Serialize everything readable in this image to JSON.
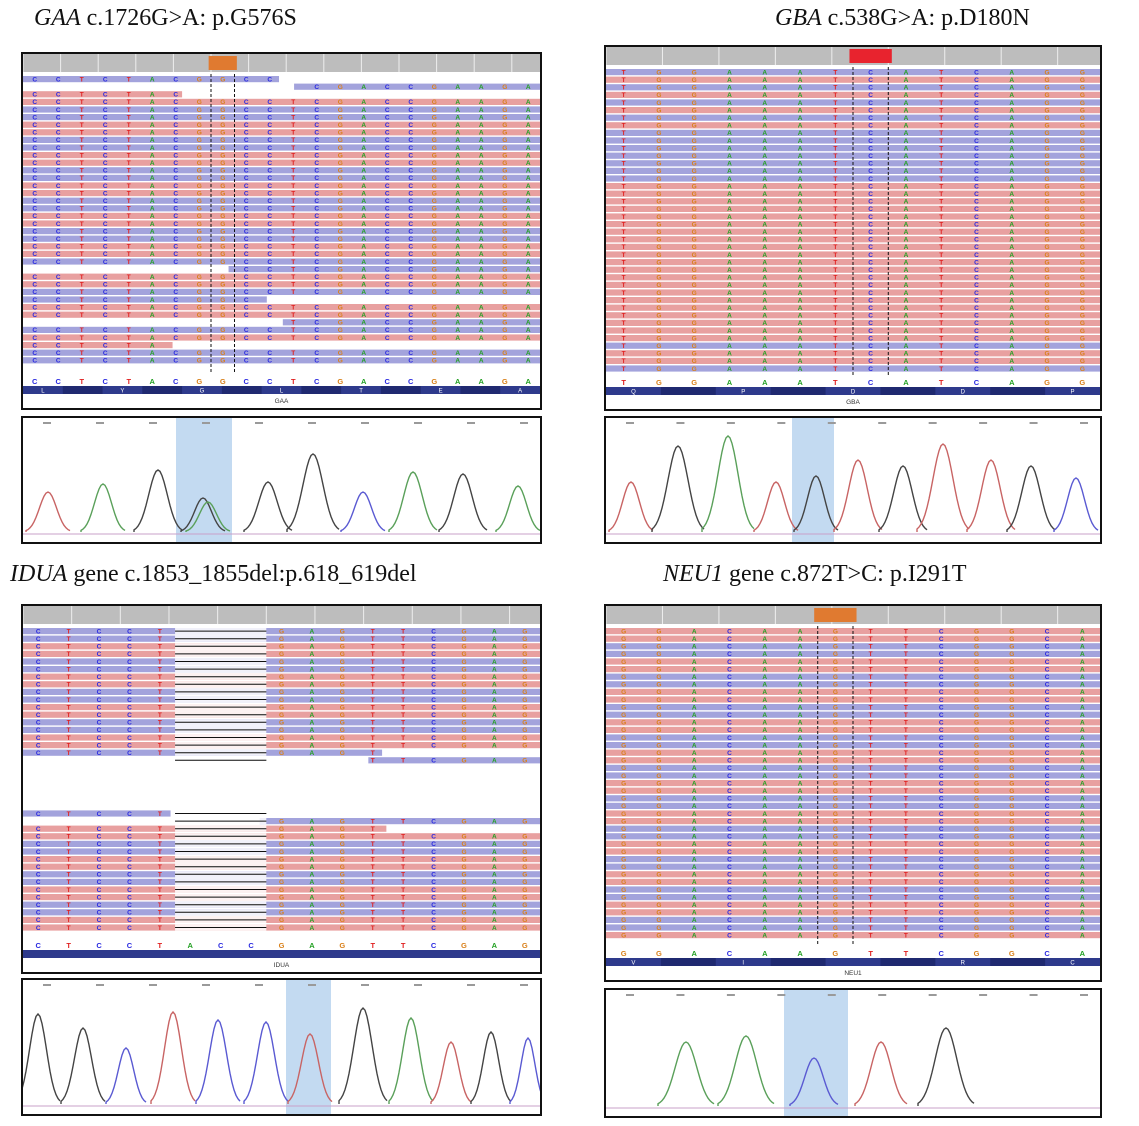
{
  "figure": {
    "panels": [
      {
        "id": "gaa",
        "gene": "GAA",
        "title_rest": " c.1726G>A: p.G576S",
        "bases": [
          "C",
          "C",
          "T",
          "C",
          "T",
          "A",
          "C",
          "G",
          "G",
          "C",
          "C",
          "T",
          "C",
          "G",
          "A",
          "C",
          "C",
          "G",
          "A",
          "A",
          "G",
          "A"
        ],
        "aa": [
          "L",
          "",
          "Y",
          "",
          "G",
          "",
          "L",
          "",
          "T",
          "",
          "E",
          "",
          "A"
        ],
        "gene_label": "GAA",
        "variant": "alt-highlight",
        "colors": {
          "red": "#e8a0a0",
          "blue": "#a3a3dc",
          "grey": "#cfcfcf",
          "marker": "#e07a30"
        }
      },
      {
        "id": "gba",
        "gene": "GBA",
        "title_rest": " c.538G>A: p.D180N",
        "bases": [
          "T",
          "G",
          "G",
          "A",
          "A",
          "A",
          "T",
          "C",
          "A",
          "T",
          "C",
          "A",
          "G",
          "G"
        ],
        "aa": [
          "Q",
          "",
          "P",
          "",
          "D",
          "",
          "D",
          "",
          "P"
        ],
        "gene_label": "GBA",
        "colors": {
          "red": "#e8a0a0",
          "blue": "#a3a3dc",
          "grey": "#cfcfcf",
          "marker": "#e8232e"
        }
      },
      {
        "id": "idua",
        "gene": "IDUA",
        "title_rest": " gene c.1853_1855del:p.618_619del",
        "bases": [
          "C",
          "T",
          "C",
          "C",
          "T",
          "A",
          "C",
          "C",
          "G",
          "A",
          "G",
          "T",
          "T",
          "C",
          "G",
          "A",
          "G"
        ],
        "gene_label": "IDUA",
        "colors": {
          "red": "#e8a0a0",
          "blue": "#a3a3dc",
          "grey": "#cfcfcf"
        }
      },
      {
        "id": "neu1",
        "gene": "NEU1",
        "title_rest": " gene c.872T>C: p.I291T",
        "bases": [
          "G",
          "G",
          "A",
          "C",
          "A",
          "A",
          "G",
          "T",
          "T",
          "C",
          "G",
          "G",
          "C",
          "A"
        ],
        "aa": [
          "V",
          "",
          "I",
          "",
          "",
          "",
          "R",
          "",
          "C"
        ],
        "gene_label": "NEU1",
        "colors": {
          "red": "#e8a0a0",
          "blue": "#a3a3dc",
          "grey": "#cfcfcf",
          "marker": "#e07a30"
        }
      }
    ],
    "base_colors": {
      "A": "#22a022",
      "C": "#2a2ae0",
      "G": "#d9801a",
      "T": "#e02020"
    }
  }
}
